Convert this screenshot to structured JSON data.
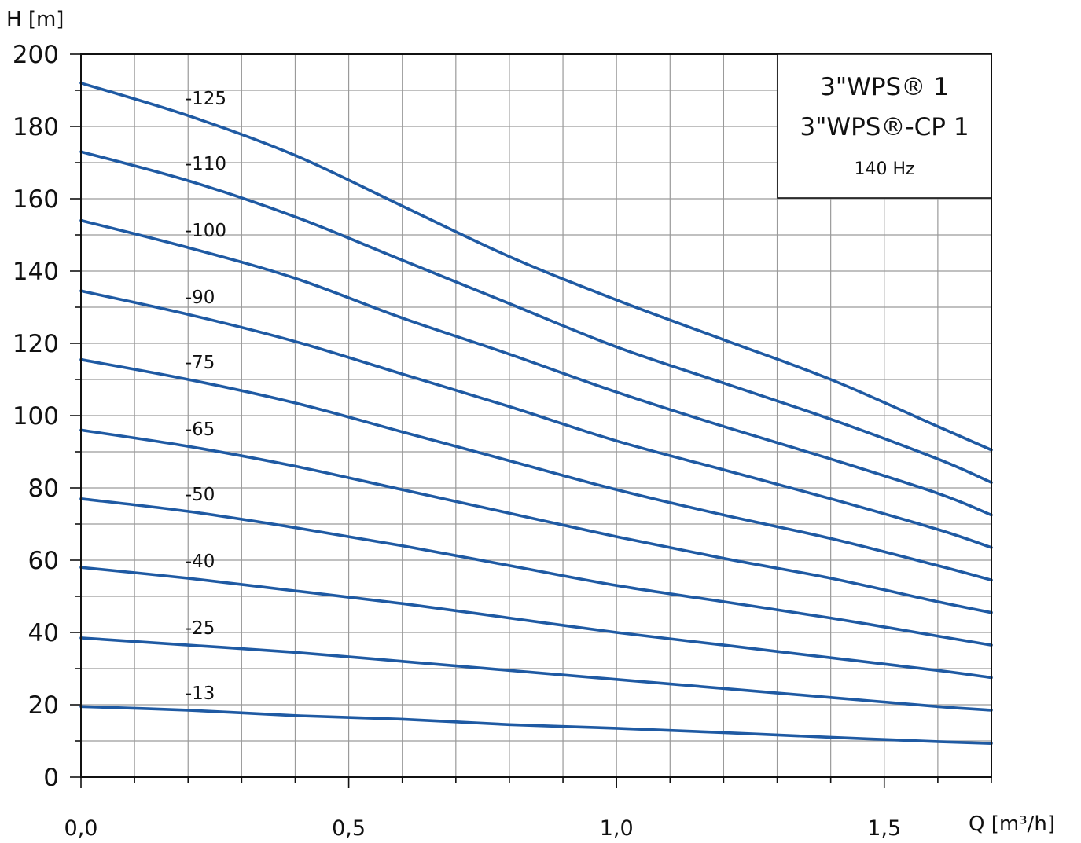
{
  "chart_data": {
    "type": "line",
    "ylabel": "H [m]",
    "xlabel": "Q [m³/h]",
    "xlim": [
      0,
      1.7
    ],
    "ylim": [
      0,
      200
    ],
    "x_ticks": [
      {
        "value": 0.0,
        "label": "0,0"
      },
      {
        "value": 0.5,
        "label": "0,5"
      },
      {
        "value": 1.0,
        "label": "1,0"
      },
      {
        "value": 1.5,
        "label": "1,5"
      }
    ],
    "y_ticks": [
      0,
      20,
      40,
      60,
      80,
      100,
      120,
      140,
      160,
      180,
      200
    ],
    "grid": true,
    "legend": {
      "position": "top-right",
      "lines": [
        "3\"WPS® 1",
        "3\"WPS®-CP 1"
      ],
      "sub": "140 Hz"
    },
    "x": [
      0,
      0.2,
      0.4,
      0.6,
      0.8,
      1.0,
      1.2,
      1.4,
      1.6,
      1.7
    ],
    "series": [
      {
        "name": "-125",
        "values": [
          192,
          183,
          172,
          158,
          144,
          132,
          121,
          110,
          97,
          90.5
        ]
      },
      {
        "name": "-110",
        "values": [
          173,
          165,
          155,
          143,
          131,
          119,
          109,
          99,
          88,
          81.5
        ]
      },
      {
        "name": "-100",
        "values": [
          154,
          146.5,
          138,
          127,
          117,
          106.5,
          97,
          88,
          78.5,
          72.5
        ]
      },
      {
        "name": "-90",
        "values": [
          134.5,
          128,
          120.5,
          111.5,
          102.5,
          93,
          85,
          77,
          68.5,
          63.5
        ]
      },
      {
        "name": "-75",
        "values": [
          115.5,
          110,
          103.5,
          95.5,
          87.5,
          79.5,
          72.5,
          66,
          58.5,
          54.5
        ]
      },
      {
        "name": "-65",
        "values": [
          96,
          91.5,
          86,
          79.5,
          73,
          66.5,
          60.5,
          55,
          48.5,
          45.5
        ]
      },
      {
        "name": "-50",
        "values": [
          77,
          73.5,
          69,
          64,
          58.5,
          53,
          48.5,
          44,
          39,
          36.5
        ]
      },
      {
        "name": "-40",
        "values": [
          58,
          55,
          51.5,
          48,
          44,
          40,
          36.5,
          33,
          29.5,
          27.5
        ]
      },
      {
        "name": "-25",
        "values": [
          38.5,
          36.5,
          34.5,
          32,
          29.5,
          27,
          24.5,
          22,
          19.5,
          18.5
        ]
      },
      {
        "name": "-13",
        "values": [
          19.5,
          18.5,
          17,
          16,
          14.5,
          13.5,
          12.3,
          11,
          9.8,
          9.3
        ]
      }
    ]
  }
}
